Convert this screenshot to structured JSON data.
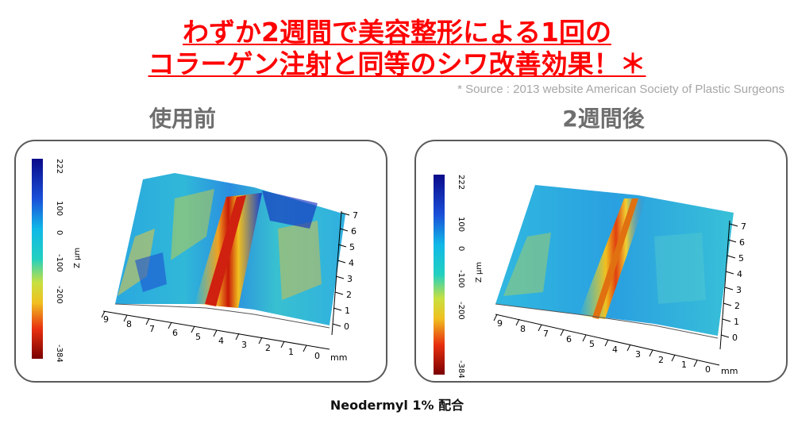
{
  "headline": {
    "line1": "わずか2週間で美容整形による1回の",
    "line2": "コラーゲン注射と同等のシワ改善効果！＊"
  },
  "source_note": "* Source : 2013 website American Society of Plastic Surgeons",
  "panels": [
    {
      "title": "使用前",
      "colorbar": {
        "max": "222",
        "ticks": [
          "100",
          "0",
          "-100",
          "-200"
        ],
        "min": "-384",
        "unit": "Z µm"
      },
      "x_ticks": [
        "9",
        "8",
        "7",
        "6",
        "5",
        "4",
        "3",
        "2",
        "1",
        "0"
      ],
      "x_unit": "mm",
      "y_ticks": [
        "7",
        "6",
        "5",
        "4",
        "3",
        "2",
        "1",
        "0"
      ]
    },
    {
      "title": "2週間後",
      "colorbar": {
        "max": "222",
        "ticks": [
          "100",
          "0",
          "-100",
          "-200"
        ],
        "min": "-384",
        "unit": "Z µm"
      },
      "x_ticks": [
        "9",
        "8",
        "7",
        "6",
        "5",
        "4",
        "3",
        "2",
        "1",
        "0"
      ],
      "x_unit": "mm",
      "y_ticks": [
        "7",
        "6",
        "5",
        "4",
        "3",
        "2",
        "1",
        "0"
      ]
    }
  ],
  "caption": "Neodermyl 1% 配合",
  "colors": {
    "headline": "#ff0000",
    "source": "#a6a6a6",
    "panel_title": "#6e6e6e"
  }
}
